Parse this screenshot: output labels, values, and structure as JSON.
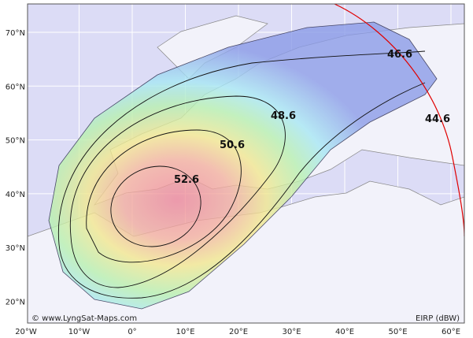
{
  "map": {
    "lat_labels": [
      "70°N",
      "60°N",
      "50°N",
      "40°N",
      "30°N",
      "20°N"
    ],
    "lon_labels": [
      "20°W",
      "10°W",
      "0°",
      "10°E",
      "20°E",
      "30°E",
      "40°E",
      "50°E",
      "60°E"
    ],
    "contours": [
      52.6,
      50.6,
      48.6,
      46.6,
      44.6
    ],
    "credit": "© www.LyngSat-Maps.com",
    "unit": "EIRP (dBW)"
  }
}
